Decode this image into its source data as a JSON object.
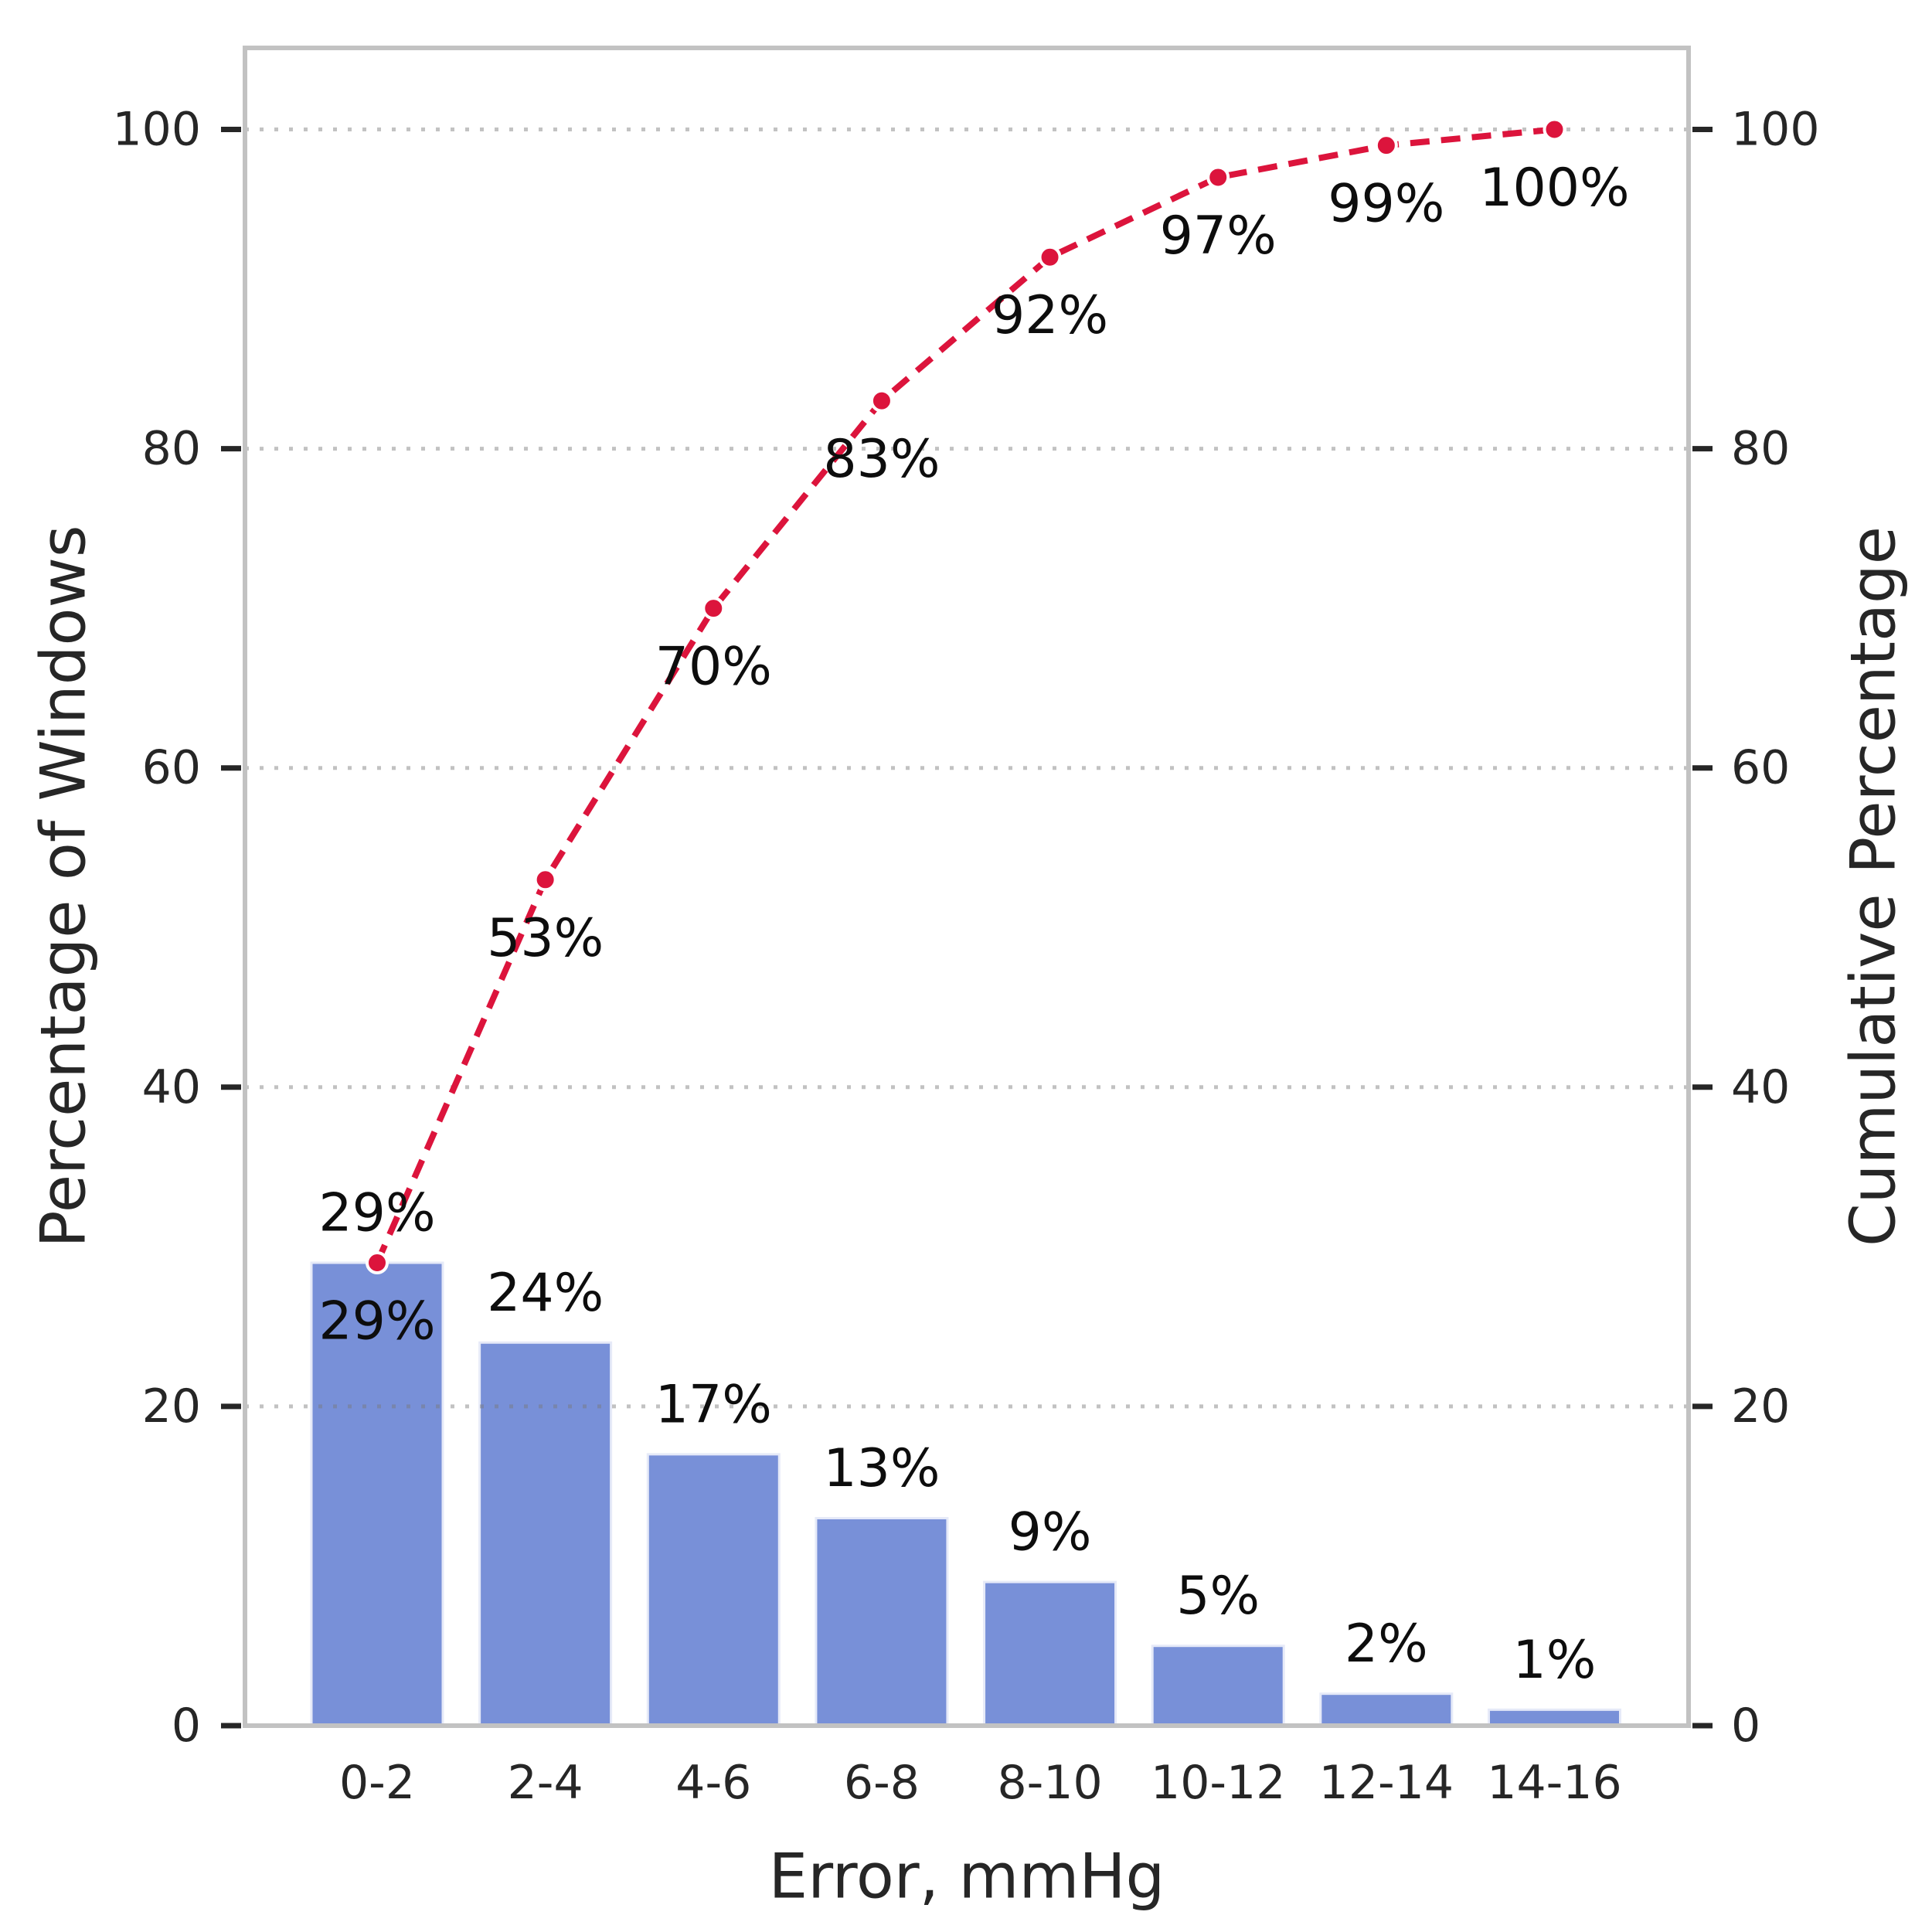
{
  "figure": {
    "background": "#ffffff",
    "title": ""
  },
  "chart_data": {
    "type": "bar",
    "subtype": "pareto (bars with cumulative percentage dashed line)",
    "title": "",
    "categories": [
      "0-2",
      "2-4",
      "4-6",
      "6-8",
      "8-10",
      "10-12",
      "12-14",
      "14-16"
    ],
    "series": [
      {
        "name": "Percentage of Windows",
        "kind": "bar",
        "values": [
          29,
          24,
          17,
          13,
          9,
          5,
          2,
          1
        ],
        "data_labels": [
          "29%",
          "24%",
          "17%",
          "13%",
          "9%",
          "5%",
          "2%",
          "1%"
        ],
        "color": "#7890d8"
      },
      {
        "name": "Cumulative Percentage",
        "kind": "line",
        "line_style": "dashed",
        "marker": "circle",
        "values": [
          29,
          53,
          70,
          83,
          92,
          97,
          99,
          100
        ],
        "data_labels": [
          "29%",
          "53%",
          "70%",
          "83%",
          "92%",
          "97%",
          "99%",
          "100%"
        ],
        "color": "#dc143c"
      }
    ],
    "xlabel": "Error, mmHg",
    "ylabel": "Percentage of Windows",
    "ylabel_right": "Cumulative Percentage",
    "ylim": [
      0,
      105
    ],
    "yticks": [
      0,
      20,
      40,
      60,
      80,
      100
    ],
    "yticks_right": [
      0,
      20,
      40,
      60,
      80,
      100
    ],
    "grid": "horizontal dotted gray",
    "legend_position": "none"
  },
  "colors": {
    "bar": "#7890d8",
    "bar_edge": "#e6eaf8",
    "line": "#dc143c",
    "marker_edge": "#ffffff",
    "grid": "#c9c9c9",
    "spine": "#c2c2c2",
    "tick": "#262626",
    "tick_text": "#262626",
    "data_label_text": "#0d0d0d"
  }
}
